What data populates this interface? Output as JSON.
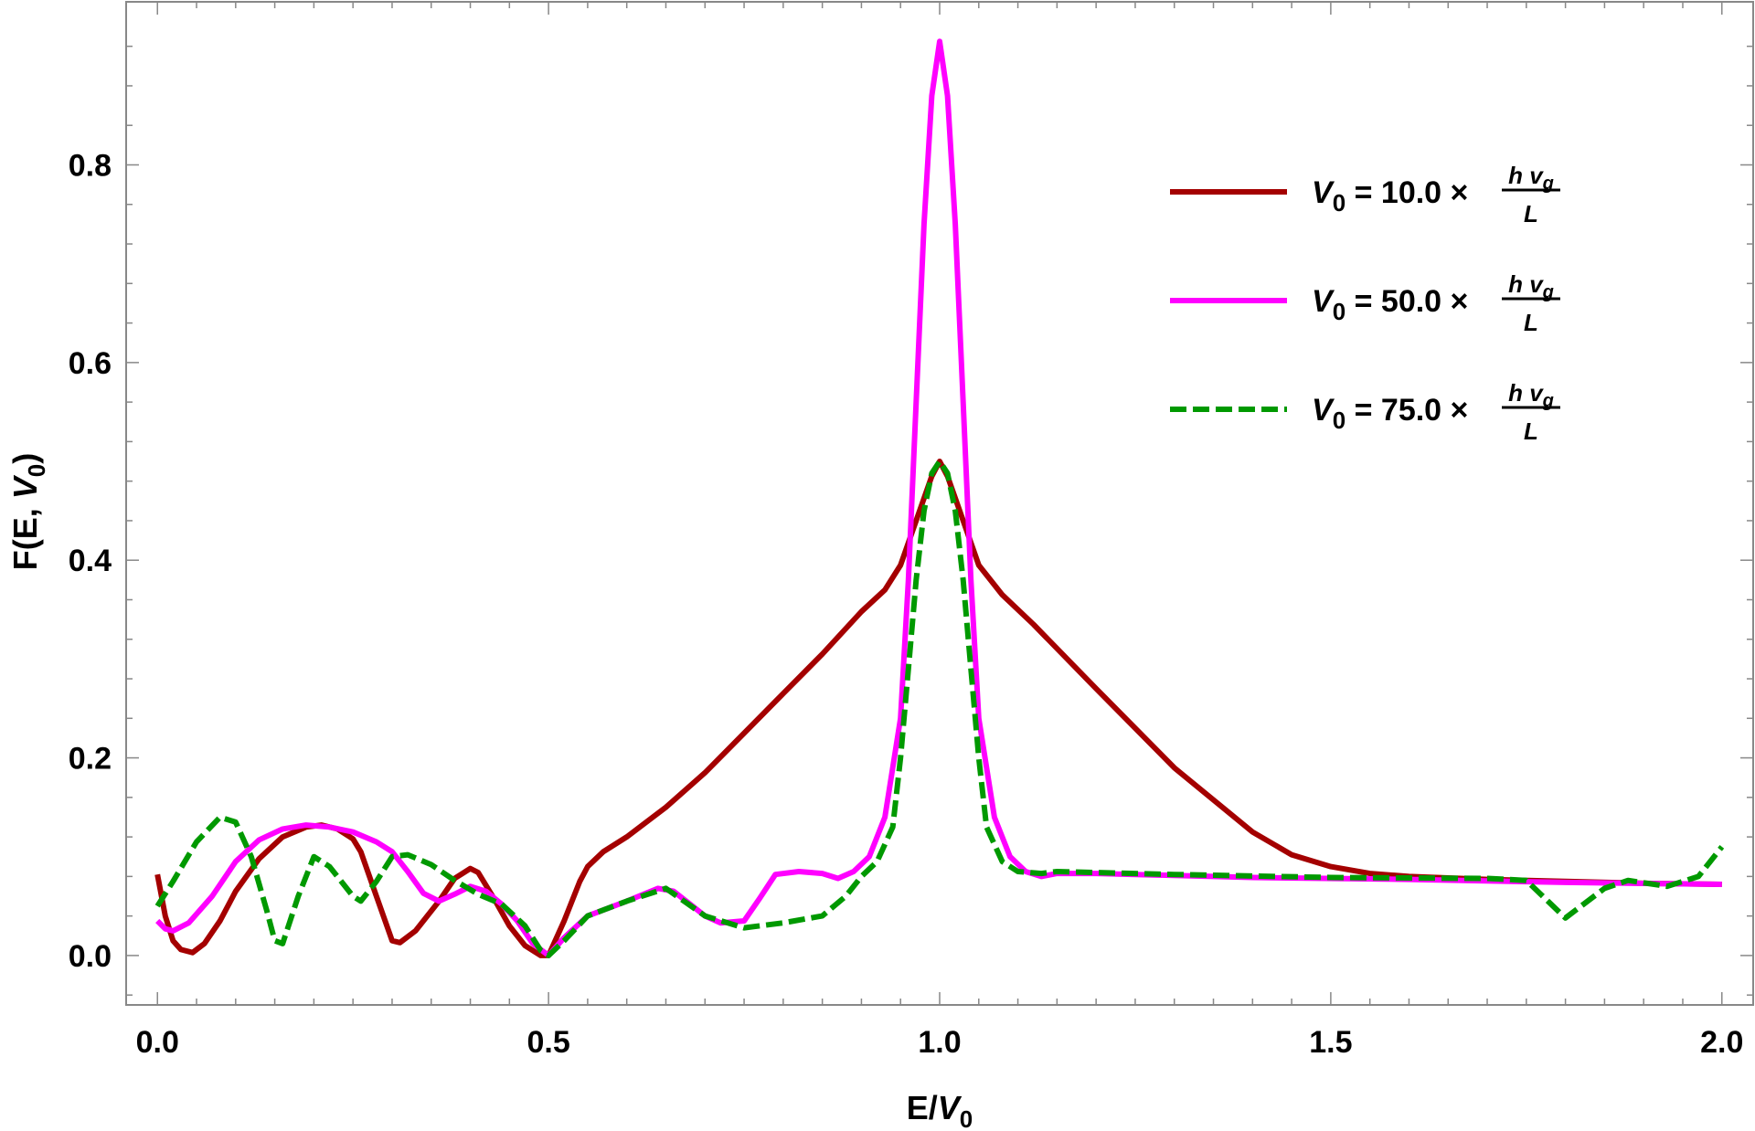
{
  "chart_data": {
    "type": "line",
    "xlabel": "E/V0",
    "xlabel_main": "E/",
    "xlabel_var": "V",
    "xlabel_sub": "0",
    "ylabel": "F(E, V0)",
    "ylabel_pre": "F(E, ",
    "ylabel_var": "V",
    "ylabel_sub": "0",
    "ylabel_post": ")",
    "xlim": [
      -0.04,
      2.04
    ],
    "ylim": [
      -0.05,
      0.965
    ],
    "x_ticks": [
      "0.0",
      "0.5",
      "1.0",
      "1.5",
      "2.0"
    ],
    "y_ticks": [
      "0.0",
      "0.2",
      "0.4",
      "0.6",
      "0.8"
    ],
    "legend_position": "top-right",
    "legend_fraction": {
      "numerator": "h v",
      "numerator_sub": "g",
      "denominator": "L"
    },
    "series": [
      {
        "name": "V0 = 10.0 × h vg / L",
        "label_var": "V",
        "label_sub": "0",
        "label_value": " = 10.0 ×",
        "color": "#a40000",
        "dash": "solid",
        "points": [
          [
            0.0,
            0.082
          ],
          [
            0.01,
            0.04
          ],
          [
            0.02,
            0.015
          ],
          [
            0.03,
            0.006
          ],
          [
            0.045,
            0.003
          ],
          [
            0.06,
            0.012
          ],
          [
            0.08,
            0.035
          ],
          [
            0.1,
            0.065
          ],
          [
            0.13,
            0.098
          ],
          [
            0.16,
            0.12
          ],
          [
            0.19,
            0.13
          ],
          [
            0.21,
            0.132
          ],
          [
            0.23,
            0.128
          ],
          [
            0.25,
            0.118
          ],
          [
            0.26,
            0.105
          ],
          [
            0.28,
            0.06
          ],
          [
            0.3,
            0.015
          ],
          [
            0.31,
            0.013
          ],
          [
            0.33,
            0.025
          ],
          [
            0.36,
            0.055
          ],
          [
            0.38,
            0.078
          ],
          [
            0.4,
            0.088
          ],
          [
            0.41,
            0.084
          ],
          [
            0.43,
            0.058
          ],
          [
            0.45,
            0.03
          ],
          [
            0.47,
            0.01
          ],
          [
            0.49,
            0.0
          ],
          [
            0.5,
            0.0
          ],
          [
            0.52,
            0.035
          ],
          [
            0.54,
            0.075
          ],
          [
            0.55,
            0.09
          ],
          [
            0.57,
            0.105
          ],
          [
            0.6,
            0.12
          ],
          [
            0.65,
            0.15
          ],
          [
            0.7,
            0.185
          ],
          [
            0.75,
            0.225
          ],
          [
            0.8,
            0.265
          ],
          [
            0.85,
            0.305
          ],
          [
            0.9,
            0.348
          ],
          [
            0.93,
            0.37
          ],
          [
            0.95,
            0.395
          ],
          [
            0.97,
            0.44
          ],
          [
            0.99,
            0.485
          ],
          [
            1.0,
            0.5
          ],
          [
            1.01,
            0.485
          ],
          [
            1.03,
            0.44
          ],
          [
            1.05,
            0.395
          ],
          [
            1.08,
            0.365
          ],
          [
            1.12,
            0.335
          ],
          [
            1.2,
            0.27
          ],
          [
            1.3,
            0.19
          ],
          [
            1.4,
            0.125
          ],
          [
            1.45,
            0.102
          ],
          [
            1.5,
            0.09
          ],
          [
            1.55,
            0.083
          ],
          [
            1.6,
            0.08
          ],
          [
            1.7,
            0.077
          ],
          [
            1.8,
            0.075
          ],
          [
            1.9,
            0.073
          ],
          [
            2.0,
            0.072
          ]
        ]
      },
      {
        "name": "V0 = 50.0 × h vg / L",
        "label_var": "V",
        "label_sub": "0",
        "label_value": " = 50.0 ×",
        "color": "#ff00ff",
        "dash": "solid",
        "points": [
          [
            0.0,
            0.035
          ],
          [
            0.01,
            0.027
          ],
          [
            0.02,
            0.025
          ],
          [
            0.04,
            0.033
          ],
          [
            0.07,
            0.06
          ],
          [
            0.1,
            0.095
          ],
          [
            0.13,
            0.117
          ],
          [
            0.16,
            0.128
          ],
          [
            0.19,
            0.132
          ],
          [
            0.22,
            0.13
          ],
          [
            0.25,
            0.125
          ],
          [
            0.28,
            0.115
          ],
          [
            0.3,
            0.105
          ],
          [
            0.32,
            0.085
          ],
          [
            0.34,
            0.063
          ],
          [
            0.36,
            0.055
          ],
          [
            0.38,
            0.062
          ],
          [
            0.4,
            0.07
          ],
          [
            0.42,
            0.065
          ],
          [
            0.44,
            0.052
          ],
          [
            0.46,
            0.035
          ],
          [
            0.48,
            0.012
          ],
          [
            0.5,
            0.0
          ],
          [
            0.52,
            0.018
          ],
          [
            0.55,
            0.04
          ],
          [
            0.6,
            0.055
          ],
          [
            0.64,
            0.068
          ],
          [
            0.66,
            0.065
          ],
          [
            0.7,
            0.04
          ],
          [
            0.72,
            0.033
          ],
          [
            0.75,
            0.035
          ],
          [
            0.77,
            0.058
          ],
          [
            0.79,
            0.082
          ],
          [
            0.82,
            0.085
          ],
          [
            0.85,
            0.083
          ],
          [
            0.87,
            0.078
          ],
          [
            0.89,
            0.085
          ],
          [
            0.91,
            0.1
          ],
          [
            0.93,
            0.14
          ],
          [
            0.95,
            0.24
          ],
          [
            0.96,
            0.38
          ],
          [
            0.97,
            0.56
          ],
          [
            0.98,
            0.74
          ],
          [
            0.99,
            0.87
          ],
          [
            1.0,
            0.925
          ],
          [
            1.01,
            0.87
          ],
          [
            1.02,
            0.74
          ],
          [
            1.03,
            0.56
          ],
          [
            1.04,
            0.38
          ],
          [
            1.05,
            0.24
          ],
          [
            1.07,
            0.14
          ],
          [
            1.09,
            0.1
          ],
          [
            1.11,
            0.085
          ],
          [
            1.13,
            0.08
          ],
          [
            1.15,
            0.083
          ],
          [
            1.2,
            0.083
          ],
          [
            1.4,
            0.079
          ],
          [
            1.6,
            0.077
          ],
          [
            1.8,
            0.074
          ],
          [
            2.0,
            0.072
          ]
        ]
      },
      {
        "name": "V0 = 75.0 × h vg / L",
        "label_var": "V",
        "label_sub": "0",
        "label_value": " = 75.0 ×",
        "color": "#009900",
        "dash": "dashed",
        "points": [
          [
            0.0,
            0.05
          ],
          [
            0.02,
            0.075
          ],
          [
            0.05,
            0.115
          ],
          [
            0.08,
            0.14
          ],
          [
            0.1,
            0.135
          ],
          [
            0.12,
            0.1
          ],
          [
            0.14,
            0.045
          ],
          [
            0.15,
            0.015
          ],
          [
            0.16,
            0.012
          ],
          [
            0.18,
            0.06
          ],
          [
            0.2,
            0.1
          ],
          [
            0.22,
            0.09
          ],
          [
            0.25,
            0.06
          ],
          [
            0.26,
            0.055
          ],
          [
            0.28,
            0.075
          ],
          [
            0.3,
            0.1
          ],
          [
            0.32,
            0.102
          ],
          [
            0.35,
            0.092
          ],
          [
            0.38,
            0.076
          ],
          [
            0.41,
            0.062
          ],
          [
            0.44,
            0.052
          ],
          [
            0.47,
            0.03
          ],
          [
            0.49,
            0.005
          ],
          [
            0.5,
            0.0
          ],
          [
            0.52,
            0.015
          ],
          [
            0.55,
            0.04
          ],
          [
            0.6,
            0.055
          ],
          [
            0.65,
            0.068
          ],
          [
            0.7,
            0.04
          ],
          [
            0.75,
            0.028
          ],
          [
            0.8,
            0.033
          ],
          [
            0.85,
            0.04
          ],
          [
            0.88,
            0.06
          ],
          [
            0.9,
            0.08
          ],
          [
            0.92,
            0.095
          ],
          [
            0.94,
            0.13
          ],
          [
            0.95,
            0.2
          ],
          [
            0.96,
            0.29
          ],
          [
            0.97,
            0.38
          ],
          [
            0.98,
            0.45
          ],
          [
            0.99,
            0.488
          ],
          [
            1.0,
            0.5
          ],
          [
            1.01,
            0.488
          ],
          [
            1.02,
            0.45
          ],
          [
            1.03,
            0.38
          ],
          [
            1.04,
            0.29
          ],
          [
            1.05,
            0.2
          ],
          [
            1.06,
            0.13
          ],
          [
            1.08,
            0.095
          ],
          [
            1.1,
            0.085
          ],
          [
            1.13,
            0.083
          ],
          [
            1.15,
            0.085
          ],
          [
            1.3,
            0.082
          ],
          [
            1.5,
            0.079
          ],
          [
            1.7,
            0.078
          ],
          [
            1.75,
            0.076
          ],
          [
            1.8,
            0.038
          ],
          [
            1.85,
            0.068
          ],
          [
            1.88,
            0.076
          ],
          [
            1.93,
            0.07
          ],
          [
            1.97,
            0.08
          ],
          [
            2.0,
            0.11
          ]
        ]
      }
    ]
  }
}
